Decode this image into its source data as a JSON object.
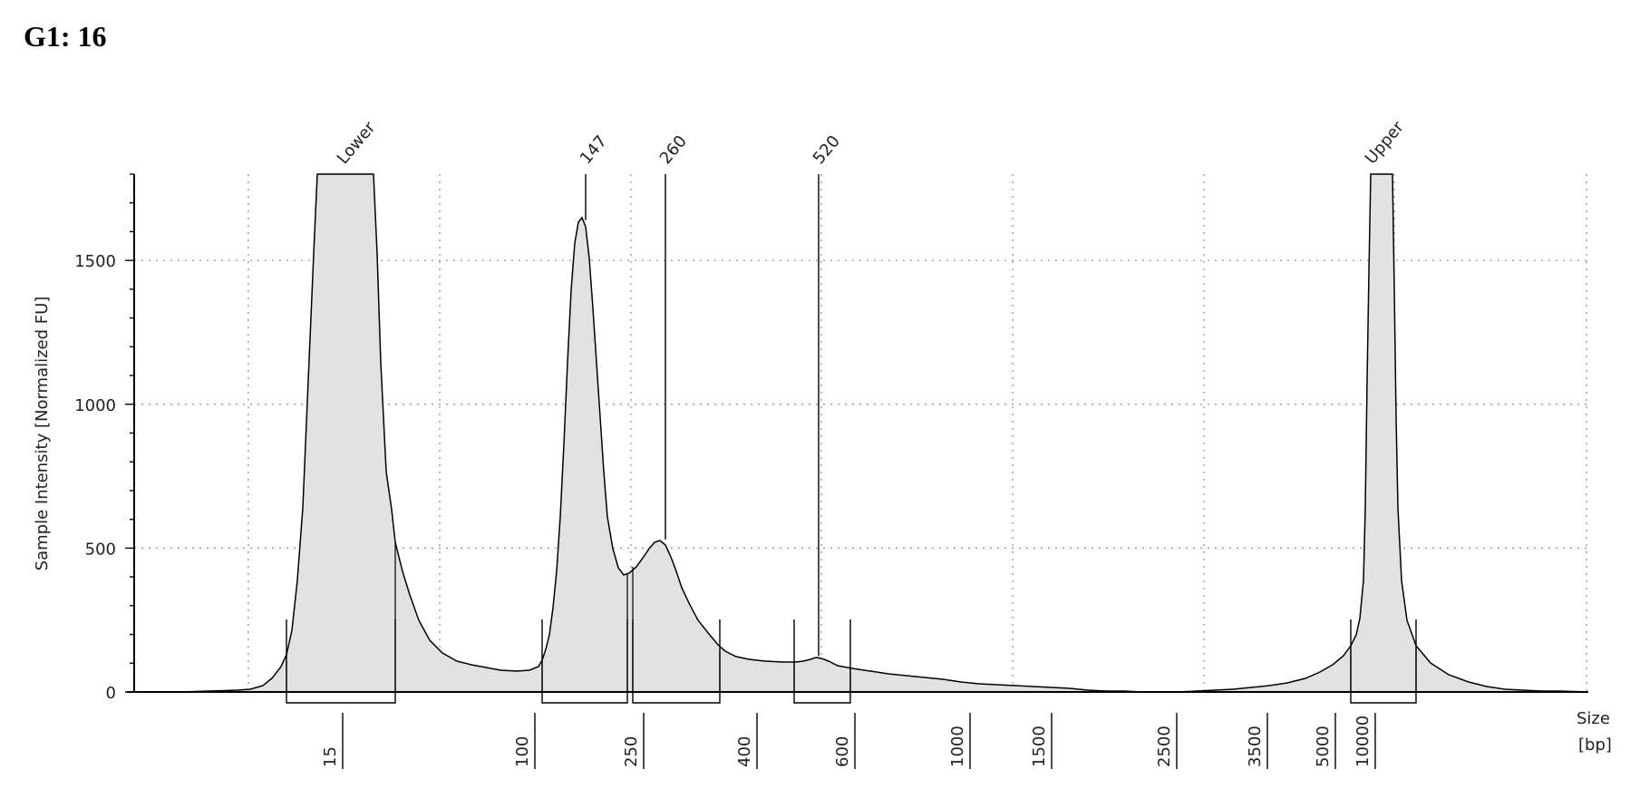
{
  "title": "G1: 16",
  "chart_data": {
    "type": "area",
    "title": "G1: 16",
    "ylabel": "Sample Intensity [Normalized FU]",
    "xlabel": [
      "Size",
      "[bp]"
    ],
    "ylim": [
      0,
      1800
    ],
    "y_ticks": [
      0,
      500,
      1000,
      1500
    ],
    "x_ticks": [
      "15",
      "100",
      "250",
      "400",
      "600",
      "1000",
      "1500",
      "2500",
      "3500",
      "5000",
      "10000"
    ],
    "peaks": [
      {
        "label": "Lower",
        "size_bp": 15,
        "intensity": 1800
      },
      {
        "label": "147",
        "size_bp": 147,
        "intensity": 1640
      },
      {
        "label": "260",
        "size_bp": 260,
        "intensity": 530
      },
      {
        "label": "520",
        "size_bp": 520,
        "intensity": 125
      },
      {
        "label": "Upper",
        "size_bp": 10380,
        "intensity": 1800
      }
    ],
    "colors": {
      "fill": "#e2e2e2",
      "line": "#000000",
      "grid": "#8a8a8a"
    }
  }
}
